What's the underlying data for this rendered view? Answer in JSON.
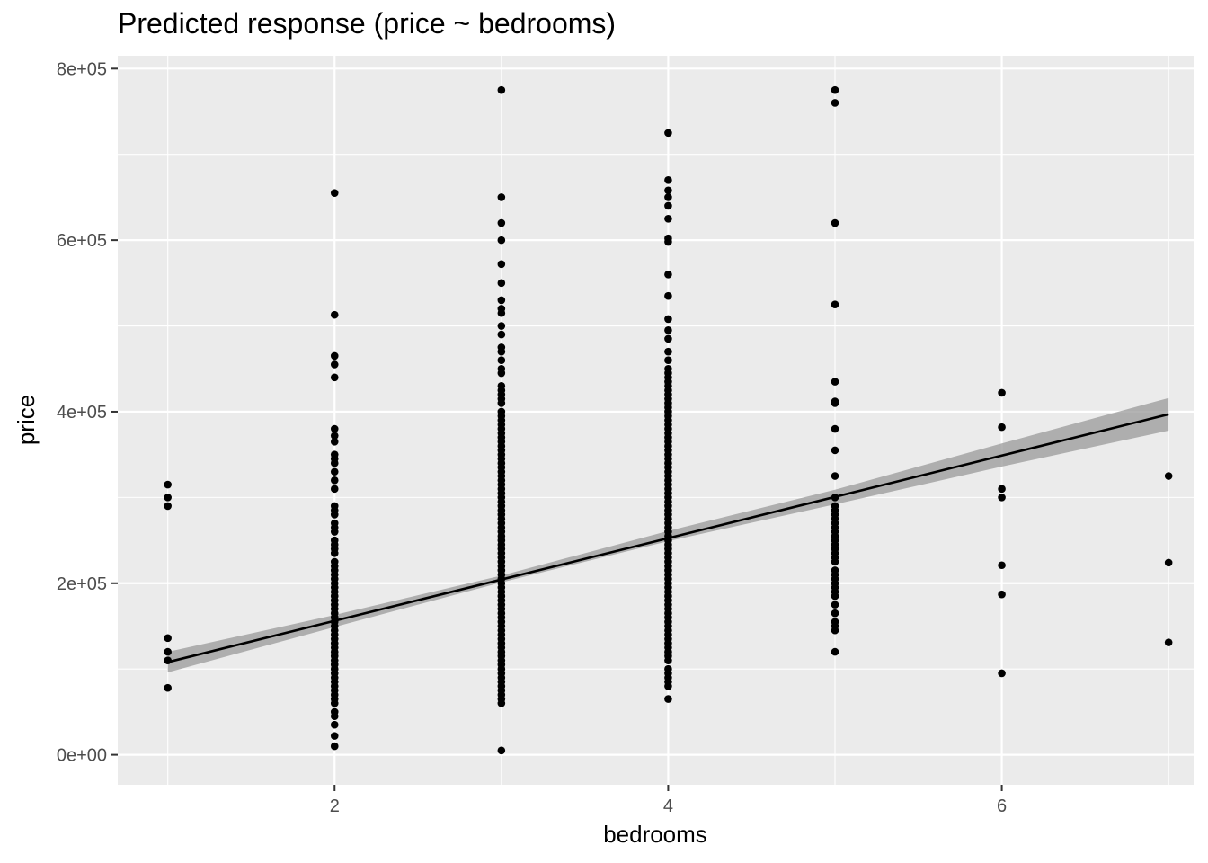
{
  "chart_data": {
    "type": "scatter",
    "title": "Predicted response (price ~ bedrooms)",
    "xlabel": "bedrooms",
    "ylabel": "price",
    "xlim": [
      0.7,
      7.15
    ],
    "ylim": [
      -35000,
      815000
    ],
    "x_ticks": [
      2,
      4,
      6
    ],
    "x_tick_labels": [
      "2",
      "4",
      "6"
    ],
    "y_ticks": [
      0,
      200000,
      400000,
      600000,
      800000
    ],
    "y_tick_labels": [
      "0e+00",
      "2e+05",
      "4e+05",
      "6e+05",
      "8e+05"
    ],
    "grid": true,
    "colors": {
      "panel": "#ebebeb",
      "grid": "#ffffff",
      "points": "#000000",
      "line": "#000000",
      "band": "#999999"
    },
    "series": [
      {
        "type": "scatter",
        "points": [
          [
            1,
            315000
          ],
          [
            1,
            300000
          ],
          [
            1,
            290000
          ],
          [
            1,
            136000
          ],
          [
            1,
            120000
          ],
          [
            1,
            110000
          ],
          [
            1,
            78000
          ],
          [
            2,
            655000
          ],
          [
            2,
            513000
          ],
          [
            2,
            465000
          ],
          [
            2,
            455000
          ],
          [
            2,
            440000
          ],
          [
            2,
            380000
          ],
          [
            2,
            372000
          ],
          [
            2,
            365000
          ],
          [
            2,
            350000
          ],
          [
            2,
            345000
          ],
          [
            2,
            340000
          ],
          [
            2,
            330000
          ],
          [
            2,
            320000
          ],
          [
            2,
            310000
          ],
          [
            2,
            290000
          ],
          [
            2,
            285000
          ],
          [
            2,
            280000
          ],
          [
            2,
            270000
          ],
          [
            2,
            265000
          ],
          [
            2,
            260000
          ],
          [
            2,
            250000
          ],
          [
            2,
            245000
          ],
          [
            2,
            240000
          ],
          [
            2,
            235000
          ],
          [
            2,
            225000
          ],
          [
            2,
            220000
          ],
          [
            2,
            215000
          ],
          [
            2,
            210000
          ],
          [
            2,
            205000
          ],
          [
            2,
            200000
          ],
          [
            2,
            195000
          ],
          [
            2,
            190000
          ],
          [
            2,
            185000
          ],
          [
            2,
            180000
          ],
          [
            2,
            175000
          ],
          [
            2,
            170000
          ],
          [
            2,
            165000
          ],
          [
            2,
            160000
          ],
          [
            2,
            155000
          ],
          [
            2,
            150000
          ],
          [
            2,
            145000
          ],
          [
            2,
            140000
          ],
          [
            2,
            135000
          ],
          [
            2,
            130000
          ],
          [
            2,
            125000
          ],
          [
            2,
            120000
          ],
          [
            2,
            115000
          ],
          [
            2,
            110000
          ],
          [
            2,
            105000
          ],
          [
            2,
            100000
          ],
          [
            2,
            95000
          ],
          [
            2,
            90000
          ],
          [
            2,
            85000
          ],
          [
            2,
            80000
          ],
          [
            2,
            75000
          ],
          [
            2,
            70000
          ],
          [
            2,
            65000
          ],
          [
            2,
            60000
          ],
          [
            2,
            50000
          ],
          [
            2,
            45000
          ],
          [
            2,
            35000
          ],
          [
            2,
            22000
          ],
          [
            2,
            10000
          ],
          [
            3,
            775000
          ],
          [
            3,
            650000
          ],
          [
            3,
            620000
          ],
          [
            3,
            600000
          ],
          [
            3,
            572000
          ],
          [
            3,
            550000
          ],
          [
            3,
            530000
          ],
          [
            3,
            520000
          ],
          [
            3,
            515000
          ],
          [
            3,
            500000
          ],
          [
            3,
            490000
          ],
          [
            3,
            475000
          ],
          [
            3,
            470000
          ],
          [
            3,
            460000
          ],
          [
            3,
            450000
          ],
          [
            3,
            445000
          ],
          [
            3,
            430000
          ],
          [
            3,
            425000
          ],
          [
            3,
            420000
          ],
          [
            3,
            415000
          ],
          [
            3,
            410000
          ],
          [
            3,
            400000
          ],
          [
            3,
            395000
          ],
          [
            3,
            390000
          ],
          [
            3,
            385000
          ],
          [
            3,
            380000
          ],
          [
            3,
            375000
          ],
          [
            3,
            370000
          ],
          [
            3,
            365000
          ],
          [
            3,
            360000
          ],
          [
            3,
            355000
          ],
          [
            3,
            350000
          ],
          [
            3,
            345000
          ],
          [
            3,
            340000
          ],
          [
            3,
            335000
          ],
          [
            3,
            330000
          ],
          [
            3,
            325000
          ],
          [
            3,
            320000
          ],
          [
            3,
            315000
          ],
          [
            3,
            310000
          ],
          [
            3,
            305000
          ],
          [
            3,
            300000
          ],
          [
            3,
            295000
          ],
          [
            3,
            290000
          ],
          [
            3,
            285000
          ],
          [
            3,
            280000
          ],
          [
            3,
            275000
          ],
          [
            3,
            270000
          ],
          [
            3,
            265000
          ],
          [
            3,
            260000
          ],
          [
            3,
            255000
          ],
          [
            3,
            250000
          ],
          [
            3,
            245000
          ],
          [
            3,
            240000
          ],
          [
            3,
            235000
          ],
          [
            3,
            230000
          ],
          [
            3,
            225000
          ],
          [
            3,
            220000
          ],
          [
            3,
            215000
          ],
          [
            3,
            210000
          ],
          [
            3,
            205000
          ],
          [
            3,
            200000
          ],
          [
            3,
            195000
          ],
          [
            3,
            190000
          ],
          [
            3,
            185000
          ],
          [
            3,
            180000
          ],
          [
            3,
            175000
          ],
          [
            3,
            170000
          ],
          [
            3,
            165000
          ],
          [
            3,
            160000
          ],
          [
            3,
            155000
          ],
          [
            3,
            150000
          ],
          [
            3,
            145000
          ],
          [
            3,
            140000
          ],
          [
            3,
            135000
          ],
          [
            3,
            130000
          ],
          [
            3,
            125000
          ],
          [
            3,
            120000
          ],
          [
            3,
            115000
          ],
          [
            3,
            110000
          ],
          [
            3,
            105000
          ],
          [
            3,
            100000
          ],
          [
            3,
            95000
          ],
          [
            3,
            90000
          ],
          [
            3,
            85000
          ],
          [
            3,
            80000
          ],
          [
            3,
            75000
          ],
          [
            3,
            70000
          ],
          [
            3,
            65000
          ],
          [
            3,
            60000
          ],
          [
            3,
            5000
          ],
          [
            4,
            725000
          ],
          [
            4,
            670000
          ],
          [
            4,
            658000
          ],
          [
            4,
            650000
          ],
          [
            4,
            640000
          ],
          [
            4,
            625000
          ],
          [
            4,
            602000
          ],
          [
            4,
            598000
          ],
          [
            4,
            560000
          ],
          [
            4,
            535000
          ],
          [
            4,
            508000
          ],
          [
            4,
            495000
          ],
          [
            4,
            485000
          ],
          [
            4,
            470000
          ],
          [
            4,
            460000
          ],
          [
            4,
            450000
          ],
          [
            4,
            445000
          ],
          [
            4,
            440000
          ],
          [
            4,
            435000
          ],
          [
            4,
            430000
          ],
          [
            4,
            425000
          ],
          [
            4,
            420000
          ],
          [
            4,
            415000
          ],
          [
            4,
            410000
          ],
          [
            4,
            405000
          ],
          [
            4,
            400000
          ],
          [
            4,
            395000
          ],
          [
            4,
            390000
          ],
          [
            4,
            385000
          ],
          [
            4,
            380000
          ],
          [
            4,
            375000
          ],
          [
            4,
            370000
          ],
          [
            4,
            365000
          ],
          [
            4,
            360000
          ],
          [
            4,
            355000
          ],
          [
            4,
            350000
          ],
          [
            4,
            345000
          ],
          [
            4,
            340000
          ],
          [
            4,
            335000
          ],
          [
            4,
            330000
          ],
          [
            4,
            325000
          ],
          [
            4,
            320000
          ],
          [
            4,
            315000
          ],
          [
            4,
            310000
          ],
          [
            4,
            305000
          ],
          [
            4,
            300000
          ],
          [
            4,
            295000
          ],
          [
            4,
            290000
          ],
          [
            4,
            285000
          ],
          [
            4,
            280000
          ],
          [
            4,
            275000
          ],
          [
            4,
            270000
          ],
          [
            4,
            265000
          ],
          [
            4,
            260000
          ],
          [
            4,
            255000
          ],
          [
            4,
            250000
          ],
          [
            4,
            245000
          ],
          [
            4,
            240000
          ],
          [
            4,
            235000
          ],
          [
            4,
            230000
          ],
          [
            4,
            225000
          ],
          [
            4,
            220000
          ],
          [
            4,
            215000
          ],
          [
            4,
            210000
          ],
          [
            4,
            205000
          ],
          [
            4,
            200000
          ],
          [
            4,
            195000
          ],
          [
            4,
            190000
          ],
          [
            4,
            185000
          ],
          [
            4,
            180000
          ],
          [
            4,
            175000
          ],
          [
            4,
            170000
          ],
          [
            4,
            165000
          ],
          [
            4,
            160000
          ],
          [
            4,
            155000
          ],
          [
            4,
            150000
          ],
          [
            4,
            145000
          ],
          [
            4,
            140000
          ],
          [
            4,
            135000
          ],
          [
            4,
            130000
          ],
          [
            4,
            125000
          ],
          [
            4,
            120000
          ],
          [
            4,
            115000
          ],
          [
            4,
            110000
          ],
          [
            4,
            100000
          ],
          [
            4,
            95000
          ],
          [
            4,
            90000
          ],
          [
            4,
            85000
          ],
          [
            4,
            80000
          ],
          [
            4,
            65000
          ],
          [
            5,
            775000
          ],
          [
            5,
            760000
          ],
          [
            5,
            620000
          ],
          [
            5,
            525000
          ],
          [
            5,
            435000
          ],
          [
            5,
            412000
          ],
          [
            5,
            410000
          ],
          [
            5,
            380000
          ],
          [
            5,
            355000
          ],
          [
            5,
            325000
          ],
          [
            5,
            300000
          ],
          [
            5,
            290000
          ],
          [
            5,
            285000
          ],
          [
            5,
            280000
          ],
          [
            5,
            275000
          ],
          [
            5,
            270000
          ],
          [
            5,
            265000
          ],
          [
            5,
            260000
          ],
          [
            5,
            255000
          ],
          [
            5,
            250000
          ],
          [
            5,
            245000
          ],
          [
            5,
            240000
          ],
          [
            5,
            235000
          ],
          [
            5,
            230000
          ],
          [
            5,
            225000
          ],
          [
            5,
            215000
          ],
          [
            5,
            210000
          ],
          [
            5,
            205000
          ],
          [
            5,
            200000
          ],
          [
            5,
            195000
          ],
          [
            5,
            190000
          ],
          [
            5,
            185000
          ],
          [
            5,
            175000
          ],
          [
            5,
            165000
          ],
          [
            5,
            155000
          ],
          [
            5,
            150000
          ],
          [
            5,
            145000
          ],
          [
            5,
            120000
          ],
          [
            6,
            422000
          ],
          [
            6,
            382000
          ],
          [
            6,
            310000
          ],
          [
            6,
            300000
          ],
          [
            6,
            221000
          ],
          [
            6,
            187000
          ],
          [
            6,
            95000
          ],
          [
            7,
            325000
          ],
          [
            7,
            224000
          ],
          [
            7,
            131000
          ]
        ]
      },
      {
        "type": "line",
        "x": [
          1,
          7
        ],
        "y": [
          108000,
          397000
        ]
      },
      {
        "type": "band",
        "x": [
          1,
          2,
          3,
          4,
          5,
          6,
          7
        ],
        "y_low": [
          96000,
          149000,
          201000,
          249000,
          292000,
          336000,
          378000
        ],
        "y_high": [
          120000,
          163000,
          209000,
          261000,
          309000,
          363000,
          416000
        ]
      }
    ]
  }
}
